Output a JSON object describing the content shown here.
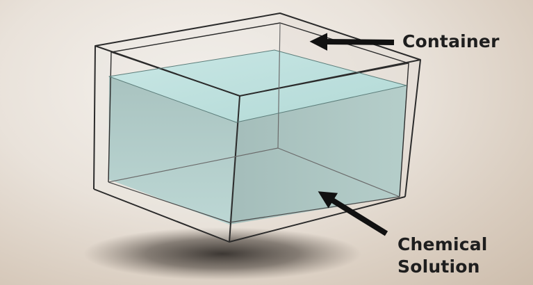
{
  "labels": {
    "container": "Container",
    "chemical_line1": "Chemical",
    "chemical_line2": "Solution"
  },
  "colors": {
    "liquid_front": "#adc9c6",
    "liquid_top": "#bfe0de",
    "glass_outline": "#2b2b2b",
    "arrow": "#111111",
    "shadow": "#2a2622"
  }
}
